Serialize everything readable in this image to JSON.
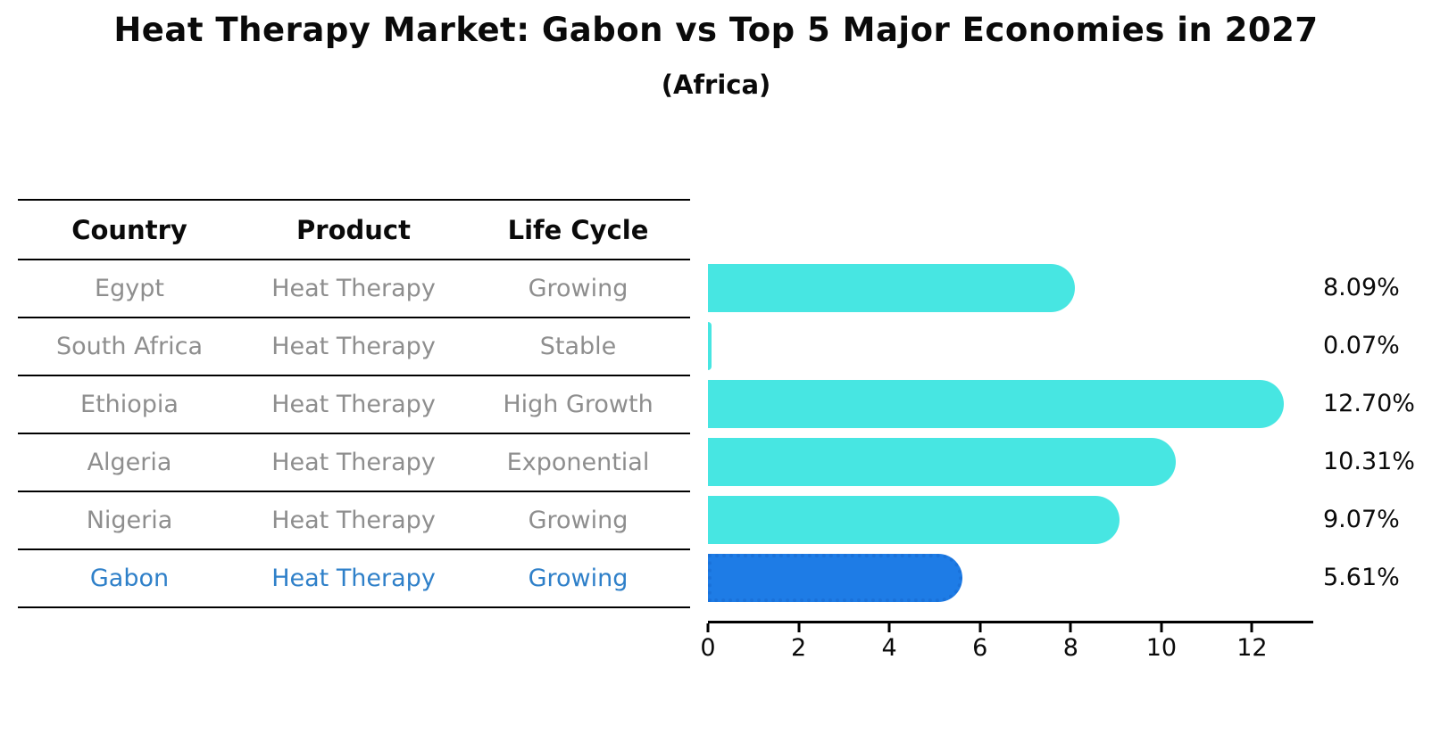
{
  "title": "Heat Therapy Market: Gabon vs Top 5 Major Economies in 2027",
  "subtitle": "(Africa)",
  "table": {
    "headers": [
      "Country",
      "Product",
      "Life Cycle"
    ],
    "rows": [
      {
        "country": "Egypt",
        "product": "Heat Therapy",
        "life_cycle": "Growing"
      },
      {
        "country": "South Africa",
        "product": "Heat Therapy",
        "life_cycle": "Stable"
      },
      {
        "country": "Ethiopia",
        "product": "Heat Therapy",
        "life_cycle": "High Growth"
      },
      {
        "country": "Algeria",
        "product": "Heat Therapy",
        "life_cycle": "Exponential"
      },
      {
        "country": "Nigeria",
        "product": "Heat Therapy",
        "life_cycle": "Growing"
      },
      {
        "country": "Gabon",
        "product": "Heat Therapy",
        "life_cycle": "Growing"
      }
    ],
    "highlighted_row": "Gabon"
  },
  "chart_data": {
    "type": "bar",
    "orientation": "horizontal",
    "title": "Heat Therapy Market: Gabon vs Top 5 Major Economies in 2027",
    "subtitle": "(Africa)",
    "categories": [
      "Egypt",
      "South Africa",
      "Ethiopia",
      "Algeria",
      "Nigeria",
      "Gabon"
    ],
    "values": [
      8.09,
      0.07,
      12.7,
      10.31,
      9.07,
      5.61
    ],
    "value_labels": [
      "8.09%",
      "0.07%",
      "12.70%",
      "10.31%",
      "9.07%",
      "5.61%"
    ],
    "xticks": [
      0,
      2,
      4,
      6,
      8,
      10,
      12
    ],
    "xtick_labels": [
      "0",
      "2",
      "4",
      "6",
      "8",
      "10",
      "12"
    ],
    "xlim": [
      0,
      13.33
    ],
    "xlabel": "",
    "ylabel": "",
    "grid": false,
    "legend": false,
    "bar_color": "#47e6e2",
    "highlight_index": 5,
    "highlight_bar_color": "#1e7ce6",
    "highlight_bar_border_style": "dotted"
  },
  "colors": {
    "background": "#ffffff",
    "text": "#0a0a0a",
    "muted_row_text": "#8e8e8e",
    "highlight_row_text": "#2f80c9",
    "bar": "#47e6e2",
    "highlight_bar": "#1e7ce6",
    "table_lines": "#000000"
  }
}
